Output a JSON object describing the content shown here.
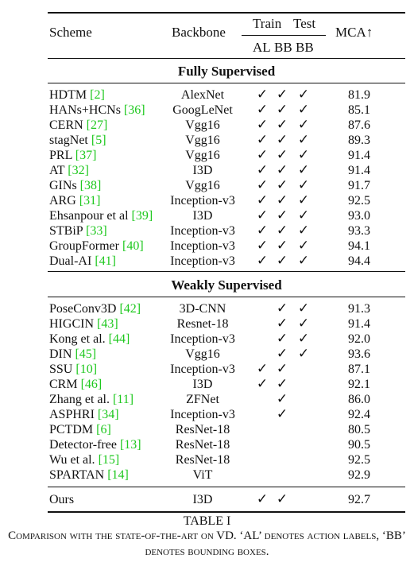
{
  "table": {
    "headers": {
      "scheme": "Scheme",
      "backbone": "Backbone",
      "train": "Train",
      "test": "Test",
      "al": "AL",
      "bb_train": "BB",
      "bb_test": "BB",
      "mca": "MCA↑"
    },
    "check_symbol": "✓",
    "sections": [
      {
        "title": "Fully Supervised",
        "rows": [
          {
            "scheme": "HDTM ",
            "ref": "[2]",
            "backbone": "AlexNet",
            "al": true,
            "bb_train": true,
            "bb_test": true,
            "mca": "81.9"
          },
          {
            "scheme": "HANs+HCNs ",
            "ref": "[36]",
            "backbone": "GoogLeNet",
            "al": true,
            "bb_train": true,
            "bb_test": true,
            "mca": "85.1"
          },
          {
            "scheme": "CERN ",
            "ref": "[27]",
            "backbone": "Vgg16",
            "al": true,
            "bb_train": true,
            "bb_test": true,
            "mca": "87.6"
          },
          {
            "scheme": "stagNet ",
            "ref": "[5]",
            "backbone": "Vgg16",
            "al": true,
            "bb_train": true,
            "bb_test": true,
            "mca": "89.3"
          },
          {
            "scheme": "PRL ",
            "ref": "[37]",
            "backbone": "Vgg16",
            "al": true,
            "bb_train": true,
            "bb_test": true,
            "mca": "91.4"
          },
          {
            "scheme": "AT ",
            "ref": "[32]",
            "backbone": "I3D",
            "al": true,
            "bb_train": true,
            "bb_test": true,
            "mca": "91.4"
          },
          {
            "scheme": "GINs ",
            "ref": "[38]",
            "backbone": "Vgg16",
            "al": true,
            "bb_train": true,
            "bb_test": true,
            "mca": "91.7"
          },
          {
            "scheme": "ARG ",
            "ref": "[31]",
            "backbone": "Inception-v3",
            "al": true,
            "bb_train": true,
            "bb_test": true,
            "mca": "92.5"
          },
          {
            "scheme": "Ehsanpour et al ",
            "ref": "[39]",
            "backbone": "I3D",
            "al": true,
            "bb_train": true,
            "bb_test": true,
            "mca": "93.0"
          },
          {
            "scheme": "STBiP ",
            "ref": "[33]",
            "backbone": "Inception-v3",
            "al": true,
            "bb_train": true,
            "bb_test": true,
            "mca": "93.3"
          },
          {
            "scheme": "GroupFormer ",
            "ref": "[40]",
            "backbone": "Inception-v3",
            "al": true,
            "bb_train": true,
            "bb_test": true,
            "mca": "94.1"
          },
          {
            "scheme": "Dual-AI ",
            "ref": "[41]",
            "backbone": "Inception-v3",
            "al": true,
            "bb_train": true,
            "bb_test": true,
            "mca": "94.4"
          }
        ]
      },
      {
        "title": "Weakly Supervised",
        "rows": [
          {
            "scheme": "PoseConv3D ",
            "ref": "[42]",
            "backbone": "3D-CNN",
            "al": false,
            "bb_train": true,
            "bb_test": true,
            "mca": "91.3"
          },
          {
            "scheme": "HIGCIN ",
            "ref": "[43]",
            "backbone": "Resnet-18",
            "al": false,
            "bb_train": true,
            "bb_test": true,
            "mca": "91.4"
          },
          {
            "scheme": "Kong et al.  ",
            "ref": "[44]",
            "backbone": "Inception-v3",
            "al": false,
            "bb_train": true,
            "bb_test": true,
            "mca": "92.0"
          },
          {
            "scheme": "DIN ",
            "ref": "[45]",
            "backbone": "Vgg16",
            "al": false,
            "bb_train": true,
            "bb_test": true,
            "mca": "93.6"
          },
          {
            "scheme": "SSU ",
            "ref": "[10]",
            "backbone": "Inception-v3",
            "al": true,
            "bb_train": true,
            "bb_test": false,
            "mca": "87.1"
          },
          {
            "scheme": "CRM ",
            "ref": "[46]",
            "backbone": "I3D",
            "al": true,
            "bb_train": true,
            "bb_test": false,
            "mca": "92.1"
          },
          {
            "scheme": "Zhang et al.  ",
            "ref": "[11]",
            "backbone": "ZFNet",
            "al": false,
            "bb_train": true,
            "bb_test": false,
            "mca": "86.0"
          },
          {
            "scheme": "ASPHRI ",
            "ref": "[34]",
            "backbone": "Inception-v3",
            "al": false,
            "bb_train": true,
            "bb_test": false,
            "mca": "92.4"
          },
          {
            "scheme": "PCTDM ",
            "ref": "[6]",
            "backbone": "ResNet-18",
            "al": false,
            "bb_train": false,
            "bb_test": false,
            "mca": "80.5"
          },
          {
            "scheme": "Detector-free ",
            "ref": "[13]",
            "backbone": "ResNet-18",
            "al": false,
            "bb_train": false,
            "bb_test": false,
            "mca": "90.5"
          },
          {
            "scheme": "Wu et al.  ",
            "ref": "[15]",
            "backbone": "ResNet-18",
            "al": false,
            "bb_train": false,
            "bb_test": false,
            "mca": "92.5"
          },
          {
            "scheme": "SPARTAN ",
            "ref": "[14]",
            "backbone": "ViT",
            "al": false,
            "bb_train": false,
            "bb_test": false,
            "mca": "92.9"
          }
        ]
      }
    ],
    "ours": {
      "scheme": "Ours",
      "ref": "",
      "backbone": "I3D",
      "al": true,
      "bb_train": true,
      "bb_test": false,
      "mca": "92.7"
    }
  },
  "caption": {
    "title": "TABLE I",
    "text": "Comparison with the state-of-the-art on VD. ‘AL’ denotes action labels, ‘BB’ denotes bounding boxes."
  }
}
